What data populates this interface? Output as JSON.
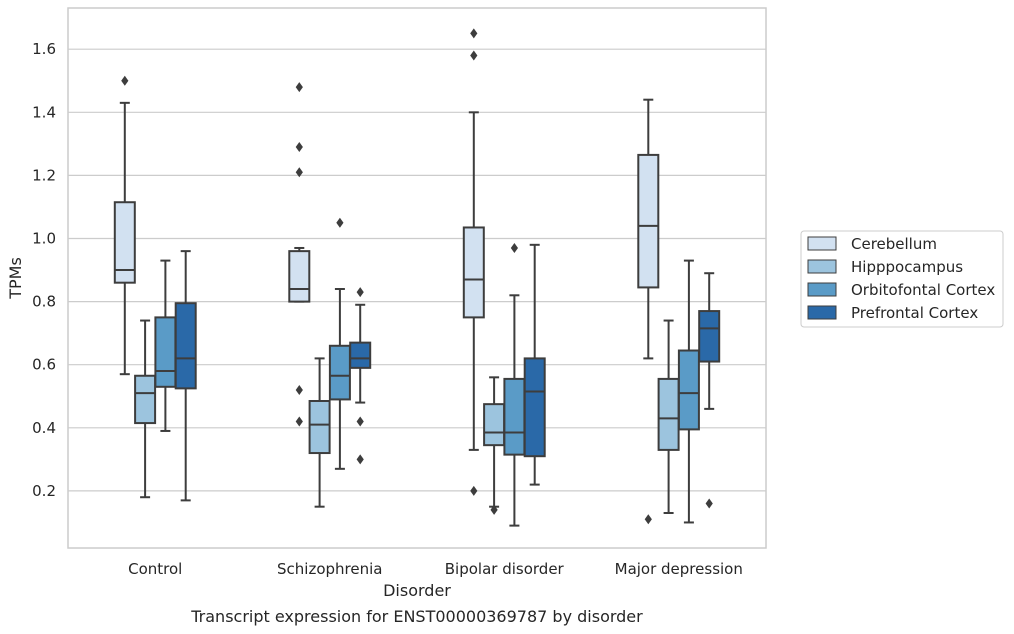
{
  "chart_data": {
    "type": "box",
    "title": "",
    "caption": "Transcript expression for ENST00000369787 by disorder",
    "xlabel": "Disorder",
    "ylabel": "TPMs",
    "ylim": [
      0.02,
      1.73
    ],
    "yticks": [
      0.2,
      0.4,
      0.6,
      0.8,
      1.0,
      1.2,
      1.4,
      1.6
    ],
    "ytick_labels": [
      "0.2",
      "0.4",
      "0.6",
      "0.8",
      "1.0",
      "1.2",
      "1.4",
      "1.6"
    ],
    "grid": "horizontal",
    "legend_position": "right",
    "categories": [
      "Control",
      "Schizophrenia",
      "Bipolar disorder",
      "Major depression"
    ],
    "series": [
      {
        "name": "Cerebellum",
        "color": "#d2e1f1",
        "boxes": [
          {
            "whisker_low": 0.57,
            "q1": 0.86,
            "median": 0.9,
            "q3": 1.115,
            "whisker_high": 1.43,
            "outliers": [
              1.5
            ]
          },
          {
            "whisker_low": 0.8,
            "q1": 0.8,
            "median": 0.84,
            "q3": 0.96,
            "whisker_high": 0.97,
            "outliers": [
              1.48,
              1.29,
              1.21,
              0.52,
              0.42
            ]
          },
          {
            "whisker_low": 0.33,
            "q1": 0.75,
            "median": 0.87,
            "q3": 1.035,
            "whisker_high": 1.4,
            "outliers": [
              1.65,
              1.58,
              0.2
            ]
          },
          {
            "whisker_low": 0.62,
            "q1": 0.845,
            "median": 1.04,
            "q3": 1.265,
            "whisker_high": 1.44,
            "outliers": [
              0.11
            ]
          }
        ]
      },
      {
        "name": "Hipppocampus",
        "color": "#9cc4de",
        "boxes": [
          {
            "whisker_low": 0.18,
            "q1": 0.415,
            "median": 0.51,
            "q3": 0.565,
            "whisker_high": 0.74,
            "outliers": []
          },
          {
            "whisker_low": 0.15,
            "q1": 0.32,
            "median": 0.41,
            "q3": 0.485,
            "whisker_high": 0.62,
            "outliers": []
          },
          {
            "whisker_low": 0.15,
            "q1": 0.345,
            "median": 0.385,
            "q3": 0.475,
            "whisker_high": 0.56,
            "outliers": [
              0.14
            ]
          },
          {
            "whisker_low": 0.13,
            "q1": 0.33,
            "median": 0.43,
            "q3": 0.555,
            "whisker_high": 0.74,
            "outliers": []
          }
        ]
      },
      {
        "name": "Orbitofontal Cortex",
        "color": "#5a9bc7",
        "boxes": [
          {
            "whisker_low": 0.39,
            "q1": 0.53,
            "median": 0.58,
            "q3": 0.75,
            "whisker_high": 0.93,
            "outliers": []
          },
          {
            "whisker_low": 0.27,
            "q1": 0.49,
            "median": 0.565,
            "q3": 0.66,
            "whisker_high": 0.84,
            "outliers": [
              1.05
            ]
          },
          {
            "whisker_low": 0.09,
            "q1": 0.315,
            "median": 0.385,
            "q3": 0.555,
            "whisker_high": 0.82,
            "outliers": [
              0.97
            ]
          },
          {
            "whisker_low": 0.1,
            "q1": 0.395,
            "median": 0.51,
            "q3": 0.645,
            "whisker_high": 0.93,
            "outliers": []
          }
        ]
      },
      {
        "name": "Prefrontal Cortex",
        "color": "#2a69a8",
        "boxes": [
          {
            "whisker_low": 0.17,
            "q1": 0.525,
            "median": 0.62,
            "q3": 0.795,
            "whisker_high": 0.96,
            "outliers": []
          },
          {
            "whisker_low": 0.48,
            "q1": 0.59,
            "median": 0.62,
            "q3": 0.67,
            "whisker_high": 0.79,
            "outliers": [
              0.83,
              0.42,
              0.3
            ]
          },
          {
            "whisker_low": 0.22,
            "q1": 0.31,
            "median": 0.515,
            "q3": 0.62,
            "whisker_high": 0.98,
            "outliers": []
          },
          {
            "whisker_low": 0.46,
            "q1": 0.61,
            "median": 0.715,
            "q3": 0.77,
            "whisker_high": 0.89,
            "outliers": [
              0.16
            ]
          }
        ]
      }
    ]
  }
}
